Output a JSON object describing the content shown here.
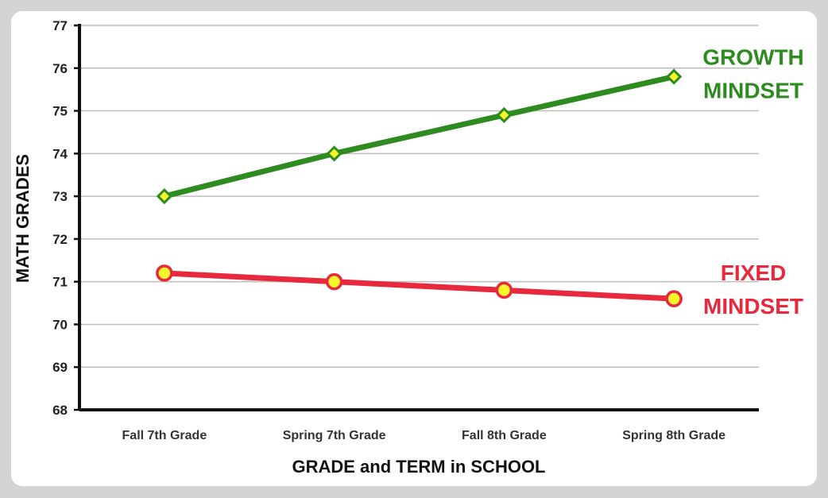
{
  "chart_data": {
    "type": "line",
    "title": "",
    "xlabel": "GRADE and TERM in SCHOOL",
    "ylabel": "MATH GRADES",
    "categories": [
      "Fall 7th Grade",
      "Spring 7th Grade",
      "Fall 8th Grade",
      "Spring 8th Grade"
    ],
    "ylim": [
      68,
      77
    ],
    "yticks": [
      68,
      69,
      70,
      71,
      72,
      73,
      74,
      75,
      76,
      77
    ],
    "grid": true,
    "series": [
      {
        "name": "GROWTH MINDSET",
        "label_lines": [
          "GROWTH",
          "MINDSET"
        ],
        "values": [
          73.0,
          74.0,
          74.9,
          75.8
        ],
        "color": "#2e8b1f",
        "marker": "diamond",
        "marker_color": "#f5f52a"
      },
      {
        "name": "FIXED MINDSET",
        "label_lines": [
          "FIXED",
          "MINDSET"
        ],
        "values": [
          71.2,
          71.0,
          70.8,
          70.6
        ],
        "color": "#e8283c",
        "marker": "circle",
        "marker_color": "#f5f52a"
      }
    ]
  }
}
